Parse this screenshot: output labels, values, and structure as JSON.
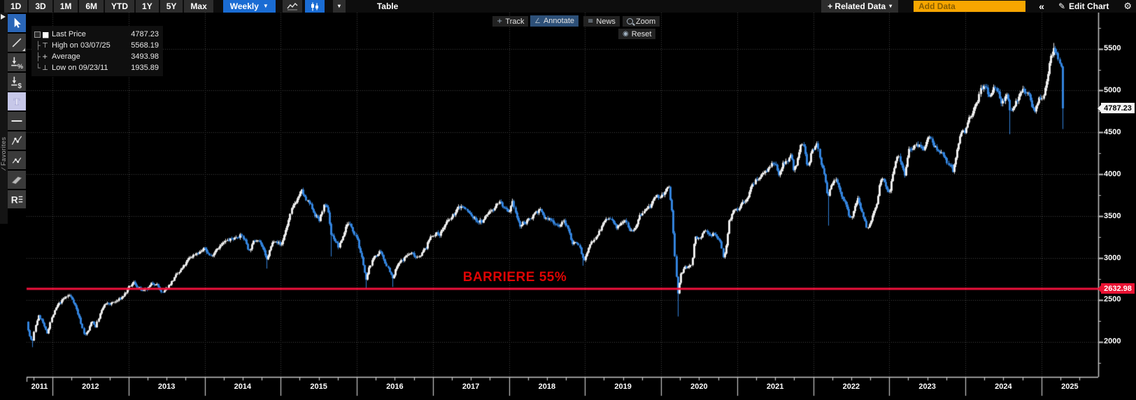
{
  "toolbar": {
    "range_buttons": [
      "1D",
      "3D",
      "1M",
      "6M",
      "YTD",
      "1Y",
      "5Y",
      "Max"
    ],
    "frequency": {
      "label": "Weekly",
      "caret": "▼"
    },
    "chart_type_caret": "▾",
    "table_label": "Table",
    "related_data": {
      "label": "+ Related Data",
      "caret": "▾"
    },
    "add_data_placeholder": "Add Data",
    "collapse_label": "«",
    "edit_chart": {
      "icon": "✎",
      "label": "Edit Chart"
    },
    "gear_icon": "⚙"
  },
  "chart_toolbar": {
    "track": {
      "icon": "+",
      "label": "Track"
    },
    "annotate": {
      "icon": "∠",
      "label": "Annotate"
    },
    "news": {
      "icon": "≡",
      "label": "News"
    },
    "zoom": {
      "label": "Zoom"
    },
    "reset": {
      "icon": "◉",
      "label": "Reset"
    }
  },
  "sidebar": {
    "favorites_label": "∕ Favorites",
    "tools": [
      "cursor",
      "trend-line",
      "percent-annotation",
      "price-annotation",
      "text",
      "horizontal-line",
      "polyline",
      "segment",
      "channel",
      "regression"
    ]
  },
  "legend": {
    "rows": [
      {
        "tree": "",
        "marker": "■",
        "label": "Last Price",
        "value": "4787.23"
      },
      {
        "tree": "├",
        "marker": "⊤",
        "label": "High on 03/07/25",
        "value": "5568.19"
      },
      {
        "tree": "├",
        "marker": "+",
        "label": "Average",
        "value": "3493.98"
      },
      {
        "tree": "└",
        "marker": "⊥",
        "label": "Low on 09/23/11",
        "value": "1935.89"
      }
    ]
  },
  "annotation": {
    "text": "BARRIERE 55%"
  },
  "axis_badges": {
    "last_price": "4787.23",
    "barrier": "2632.98"
  },
  "colors": {
    "accent_blue": "#1a6cd3",
    "up_candle": "#ededed",
    "down_candle": "#3383dc",
    "barrier_red": "#f2123c",
    "annotation_red": "#de0404",
    "badge_red": "#e91233",
    "add_data_orange": "#f7a600",
    "grid": "#404040",
    "axis": "#c9c9c9"
  },
  "chart_data": {
    "type": "candlestick",
    "frequency": "weekly",
    "x_start": 2011.66,
    "x_end": 2025.285,
    "x_tick_years": [
      2011,
      2012,
      2013,
      2014,
      2015,
      2016,
      2017,
      2018,
      2019,
      2020,
      2021,
      2022,
      2023,
      2024,
      2025
    ],
    "y_ticks": [
      2000,
      2500,
      3000,
      3500,
      4000,
      4500,
      5000,
      5500
    ],
    "y_minor_step": 250,
    "grid": true,
    "legend_position": "top-left",
    "barrier": {
      "label": "BARRIERE 55%",
      "value": 2632.98
    },
    "stats": {
      "last_price": 4787.23,
      "high": {
        "date": "03/07/25",
        "value": 5568.19
      },
      "average": 3493.98,
      "low": {
        "date": "09/23/11",
        "value": 1935.89
      }
    },
    "close_anchors": [
      [
        2011.66,
        2240
      ],
      [
        2011.7,
        2060
      ],
      [
        2011.735,
        1998
      ],
      [
        2011.77,
        2180
      ],
      [
        2011.81,
        2310
      ],
      [
        2011.86,
        2255
      ],
      [
        2011.9,
        2140
      ],
      [
        2011.93,
        2095
      ],
      [
        2011.97,
        2250
      ],
      [
        2012.0,
        2317
      ],
      [
        2012.06,
        2425
      ],
      [
        2012.13,
        2495
      ],
      [
        2012.21,
        2560
      ],
      [
        2012.28,
        2480
      ],
      [
        2012.36,
        2260
      ],
      [
        2012.42,
        2075
      ],
      [
        2012.47,
        2135
      ],
      [
        2012.52,
        2260
      ],
      [
        2012.56,
        2175
      ],
      [
        2012.62,
        2330
      ],
      [
        2012.68,
        2440
      ],
      [
        2012.75,
        2450
      ],
      [
        2012.83,
        2480
      ],
      [
        2012.9,
        2520
      ],
      [
        2012.96,
        2585
      ],
      [
        2013.0,
        2636
      ],
      [
        2013.06,
        2705
      ],
      [
        2013.13,
        2645
      ],
      [
        2013.19,
        2590
      ],
      [
        2013.24,
        2620
      ],
      [
        2013.3,
        2685
      ],
      [
        2013.36,
        2710
      ],
      [
        2013.44,
        2565
      ],
      [
        2013.49,
        2625
      ],
      [
        2013.55,
        2705
      ],
      [
        2013.63,
        2790
      ],
      [
        2013.72,
        2895
      ],
      [
        2013.8,
        2995
      ],
      [
        2013.88,
        3060
      ],
      [
        2013.95,
        3085
      ],
      [
        2014.0,
        3109
      ],
      [
        2014.08,
        3015
      ],
      [
        2014.15,
        3125
      ],
      [
        2014.23,
        3165
      ],
      [
        2014.3,
        3205
      ],
      [
        2014.38,
        3235
      ],
      [
        2014.46,
        3285
      ],
      [
        2014.53,
        3205
      ],
      [
        2014.58,
        3085
      ],
      [
        2014.64,
        3185
      ],
      [
        2014.7,
        3245
      ],
      [
        2014.76,
        3125
      ],
      [
        2014.81,
        2955
      ],
      [
        2014.86,
        3105
      ],
      [
        2014.92,
        3235
      ],
      [
        2014.97,
        3185
      ],
      [
        2015.0,
        3146
      ],
      [
        2015.07,
        3355
      ],
      [
        2015.14,
        3565
      ],
      [
        2015.21,
        3705
      ],
      [
        2015.27,
        3800
      ],
      [
        2015.33,
        3685
      ],
      [
        2015.4,
        3605
      ],
      [
        2015.46,
        3505
      ],
      [
        2015.51,
        3445
      ],
      [
        2015.56,
        3625
      ],
      [
        2015.62,
        3555
      ],
      [
        2015.66,
        3285
      ],
      [
        2015.71,
        3225
      ],
      [
        2015.76,
        3125
      ],
      [
        2015.82,
        3275
      ],
      [
        2015.87,
        3425
      ],
      [
        2015.92,
        3385
      ],
      [
        2015.97,
        3305
      ],
      [
        2016.0,
        3268
      ],
      [
        2016.04,
        3065
      ],
      [
        2016.09,
        2905
      ],
      [
        2016.12,
        2725
      ],
      [
        2016.17,
        2905
      ],
      [
        2016.23,
        3025
      ],
      [
        2016.3,
        3065
      ],
      [
        2016.36,
        2965
      ],
      [
        2016.42,
        2875
      ],
      [
        2016.47,
        2745
      ],
      [
        2016.52,
        2885
      ],
      [
        2016.58,
        2955
      ],
      [
        2016.65,
        3035
      ],
      [
        2016.72,
        3055
      ],
      [
        2016.78,
        3015
      ],
      [
        2016.85,
        3065
      ],
      [
        2016.91,
        3125
      ],
      [
        2016.96,
        3245
      ],
      [
        2017.0,
        3291
      ],
      [
        2017.08,
        3285
      ],
      [
        2017.16,
        3395
      ],
      [
        2017.24,
        3475
      ],
      [
        2017.32,
        3585
      ],
      [
        2017.38,
        3625
      ],
      [
        2017.45,
        3555
      ],
      [
        2017.52,
        3485
      ],
      [
        2017.58,
        3445
      ],
      [
        2017.65,
        3435
      ],
      [
        2017.72,
        3535
      ],
      [
        2017.8,
        3605
      ],
      [
        2017.87,
        3685
      ],
      [
        2017.93,
        3595
      ],
      [
        2017.97,
        3545
      ],
      [
        2018.0,
        3504
      ],
      [
        2018.05,
        3655
      ],
      [
        2018.1,
        3485
      ],
      [
        2018.14,
        3375
      ],
      [
        2018.2,
        3425
      ],
      [
        2018.26,
        3445
      ],
      [
        2018.33,
        3545
      ],
      [
        2018.4,
        3575
      ],
      [
        2018.47,
        3475
      ],
      [
        2018.53,
        3455
      ],
      [
        2018.6,
        3425
      ],
      [
        2018.66,
        3395
      ],
      [
        2018.72,
        3435
      ],
      [
        2018.78,
        3325
      ],
      [
        2018.83,
        3185
      ],
      [
        2018.89,
        3195
      ],
      [
        2018.93,
        3125
      ],
      [
        2018.97,
        2985
      ],
      [
        2019.0,
        3001
      ],
      [
        2019.07,
        3165
      ],
      [
        2019.14,
        3275
      ],
      [
        2019.21,
        3365
      ],
      [
        2019.28,
        3475
      ],
      [
        2019.35,
        3445
      ],
      [
        2019.41,
        3335
      ],
      [
        2019.47,
        3445
      ],
      [
        2019.53,
        3485
      ],
      [
        2019.59,
        3335
      ],
      [
        2019.65,
        3365
      ],
      [
        2019.72,
        3495
      ],
      [
        2019.79,
        3575
      ],
      [
        2019.86,
        3625
      ],
      [
        2019.92,
        3695
      ],
      [
        2019.97,
        3725
      ],
      [
        2020.0,
        3745
      ],
      [
        2020.05,
        3795
      ],
      [
        2020.1,
        3840
      ],
      [
        2020.14,
        3580
      ],
      [
        2020.18,
        3005
      ],
      [
        2020.215,
        2550
      ],
      [
        2020.25,
        2795
      ],
      [
        2020.3,
        2875
      ],
      [
        2020.35,
        2885
      ],
      [
        2020.4,
        2935
      ],
      [
        2020.44,
        3235
      ],
      [
        2020.48,
        3245
      ],
      [
        2020.53,
        3265
      ],
      [
        2020.58,
        3315
      ],
      [
        2020.63,
        3265
      ],
      [
        2020.68,
        3305
      ],
      [
        2020.73,
        3235
      ],
      [
        2020.78,
        3195
      ],
      [
        2020.82,
        2975
      ],
      [
        2020.86,
        3205
      ],
      [
        2020.89,
        3475
      ],
      [
        2020.93,
        3525
      ],
      [
        2020.97,
        3565
      ],
      [
        2021.0,
        3553
      ],
      [
        2021.06,
        3655
      ],
      [
        2021.12,
        3705
      ],
      [
        2021.19,
        3855
      ],
      [
        2021.26,
        3955
      ],
      [
        2021.33,
        4015
      ],
      [
        2021.4,
        4075
      ],
      [
        2021.45,
        4125
      ],
      [
        2021.51,
        4065
      ],
      [
        2021.55,
        3985
      ],
      [
        2021.6,
        4135
      ],
      [
        2021.66,
        4185
      ],
      [
        2021.7,
        4225
      ],
      [
        2021.74,
        4055
      ],
      [
        2021.78,
        4115
      ],
      [
        2021.83,
        4305
      ],
      [
        2021.87,
        4365
      ],
      [
        2021.9,
        4155
      ],
      [
        2021.94,
        4085
      ],
      [
        2021.97,
        4255
      ],
      [
        2022.0,
        4298
      ],
      [
        2022.04,
        4395
      ],
      [
        2022.08,
        4235
      ],
      [
        2022.12,
        4075
      ],
      [
        2022.16,
        3885
      ],
      [
        2022.19,
        3695
      ],
      [
        2022.23,
        3875
      ],
      [
        2022.27,
        3955
      ],
      [
        2022.31,
        3925
      ],
      [
        2022.35,
        3805
      ],
      [
        2022.4,
        3685
      ],
      [
        2022.45,
        3545
      ],
      [
        2022.5,
        3445
      ],
      [
        2022.54,
        3605
      ],
      [
        2022.58,
        3725
      ],
      [
        2022.62,
        3595
      ],
      [
        2022.67,
        3495
      ],
      [
        2022.71,
        3345
      ],
      [
        2022.75,
        3395
      ],
      [
        2022.79,
        3535
      ],
      [
        2022.84,
        3625
      ],
      [
        2022.88,
        3925
      ],
      [
        2022.92,
        3965
      ],
      [
        2022.96,
        3855
      ],
      [
        2023.0,
        3793
      ],
      [
        2023.04,
        4025
      ],
      [
        2023.08,
        4165
      ],
      [
        2023.12,
        4255
      ],
      [
        2023.16,
        4105
      ],
      [
        2023.2,
        4015
      ],
      [
        2023.25,
        4285
      ],
      [
        2023.3,
        4325
      ],
      [
        2023.35,
        4395
      ],
      [
        2023.4,
        4345
      ],
      [
        2023.45,
        4335
      ],
      [
        2023.5,
        4405
      ],
      [
        2023.55,
        4445
      ],
      [
        2023.6,
        4335
      ],
      [
        2023.65,
        4255
      ],
      [
        2023.7,
        4285
      ],
      [
        2023.74,
        4185
      ],
      [
        2023.79,
        4105
      ],
      [
        2023.83,
        4025
      ],
      [
        2023.87,
        4165
      ],
      [
        2023.91,
        4345
      ],
      [
        2023.95,
        4485
      ],
      [
        2024.0,
        4518
      ],
      [
        2024.05,
        4655
      ],
      [
        2024.1,
        4755
      ],
      [
        2024.15,
        4885
      ],
      [
        2024.2,
        4995
      ],
      [
        2024.25,
        5075
      ],
      [
        2024.3,
        4955
      ],
      [
        2024.34,
        4985
      ],
      [
        2024.38,
        5065
      ],
      [
        2024.43,
        4965
      ],
      [
        2024.47,
        4865
      ],
      [
        2024.51,
        4905
      ],
      [
        2024.55,
        4965
      ],
      [
        2024.59,
        4685
      ],
      [
        2024.63,
        4785
      ],
      [
        2024.67,
        4895
      ],
      [
        2024.71,
        4955
      ],
      [
        2024.75,
        5015
      ],
      [
        2024.79,
        4945
      ],
      [
        2024.83,
        4985
      ],
      [
        2024.87,
        4835
      ],
      [
        2024.91,
        4765
      ],
      [
        2024.95,
        4885
      ],
      [
        2024.98,
        4905
      ],
      [
        2025.0,
        4896
      ],
      [
        2025.04,
        5025
      ],
      [
        2025.08,
        5185
      ],
      [
        2025.12,
        5385
      ],
      [
        2025.16,
        5505
      ],
      [
        2025.19,
        5455
      ],
      [
        2025.22,
        5385
      ],
      [
        2025.25,
        5305
      ],
      [
        2025.27,
        5255
      ],
      [
        2025.285,
        4787.23
      ]
    ],
    "wick_events": [
      {
        "t": 2011.735,
        "low": 1935.89
      },
      {
        "t": 2014.81,
        "low": 2874
      },
      {
        "t": 2015.66,
        "low": 3019
      },
      {
        "t": 2016.12,
        "low": 2630
      },
      {
        "t": 2016.47,
        "low": 2655
      },
      {
        "t": 2018.97,
        "low": 2908
      },
      {
        "t": 2020.215,
        "low": 2302
      },
      {
        "t": 2022.19,
        "low": 3387
      },
      {
        "t": 2024.59,
        "low": 4478
      },
      {
        "t": 2025.16,
        "high": 5568.19
      },
      {
        "t": 2025.285,
        "low": 4540
      }
    ]
  }
}
